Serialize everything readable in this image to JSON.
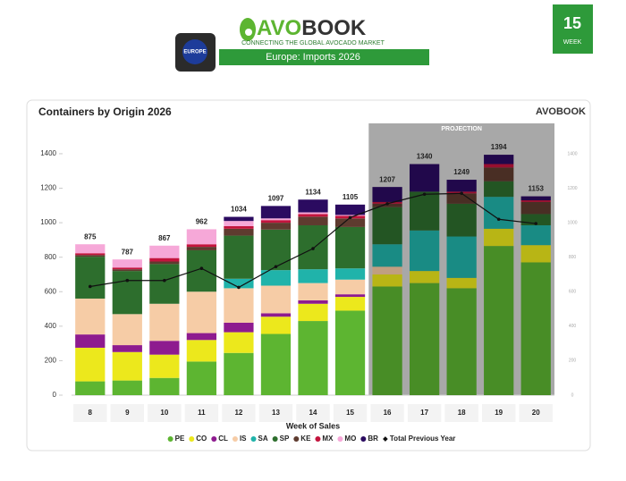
{
  "header": {
    "brand_prefix": "AVO",
    "brand_suffix": "BOOK",
    "tagline": "CONNECTING THE GLOBAL AVOCADO MARKET",
    "region_badge": "EUROPE",
    "banner": "Europe: Imports 2026",
    "week_number": "15",
    "week_label": "WEEK"
  },
  "chart_data": {
    "type": "bar",
    "stacked": true,
    "title": "Containers by Origin 2026",
    "logo": "AVOBOOK",
    "x_label": "Week of Sales",
    "categories": [
      "8",
      "9",
      "10",
      "11",
      "12",
      "13",
      "14",
      "15",
      "16",
      "17",
      "18",
      "19",
      "20"
    ],
    "projection": {
      "label": "PROJECTION",
      "from": "16"
    },
    "totals": [
      875,
      787,
      867,
      962,
      1034,
      1097,
      1134,
      1105,
      1207,
      1340,
      1249,
      1394,
      1153
    ],
    "ylim": [
      0,
      1550
    ],
    "yticks": [
      0,
      200,
      400,
      600,
      800,
      1000,
      1200,
      1400
    ],
    "grid": false,
    "series": [
      {
        "name": "PE",
        "color": "#5db531",
        "values": [
          80,
          85,
          100,
          195,
          245,
          355,
          430,
          490,
          630,
          650,
          620,
          865,
          770
        ]
      },
      {
        "name": "CO",
        "color": "#ece81c",
        "values": [
          195,
          165,
          135,
          125,
          120,
          100,
          100,
          80,
          70,
          70,
          60,
          100,
          100
        ]
      },
      {
        "name": "CL",
        "color": "#8e1b8f",
        "values": [
          77,
          40,
          80,
          40,
          55,
          20,
          20,
          15,
          0,
          0,
          0,
          0,
          0
        ]
      },
      {
        "name": "IS",
        "color": "#f6cca6",
        "values": [
          208,
          180,
          215,
          240,
          200,
          160,
          100,
          85,
          45,
          0,
          0,
          0,
          0
        ]
      },
      {
        "name": "SA",
        "color": "#20b3aa",
        "values": [
          0,
          0,
          0,
          0,
          55,
          90,
          80,
          65,
          130,
          235,
          240,
          185,
          115
        ]
      },
      {
        "name": "SP",
        "color": "#2d6e2d",
        "values": [
          243,
          250,
          230,
          240,
          250,
          235,
          255,
          240,
          215,
          225,
          190,
          90,
          65
        ]
      },
      {
        "name": "KE",
        "color": "#5e3b2f",
        "values": [
          10,
          10,
          15,
          20,
          40,
          40,
          50,
          50,
          20,
          0,
          60,
          80,
          70
        ]
      },
      {
        "name": "MX",
        "color": "#c3143d",
        "values": [
          10,
          10,
          20,
          15,
          15,
          15,
          15,
          15,
          10,
          0,
          10,
          20,
          10
        ]
      },
      {
        "name": "MO",
        "color": "#f6a8d8",
        "values": [
          52,
          47,
          72,
          87,
          30,
          10,
          10,
          5,
          0,
          0,
          0,
          0,
          0
        ]
      },
      {
        "name": "BR",
        "color": "#2b0b60",
        "values": [
          0,
          0,
          0,
          0,
          24,
          72,
          74,
          60,
          87,
          160,
          69,
          54,
          23
        ]
      },
      {
        "name": "Total Previous Year",
        "type": "line",
        "color": "#111111",
        "values": [
          630,
          665,
          665,
          735,
          625,
          745,
          850,
          1030,
          1110,
          1165,
          1170,
          1020,
          995
        ]
      }
    ]
  }
}
